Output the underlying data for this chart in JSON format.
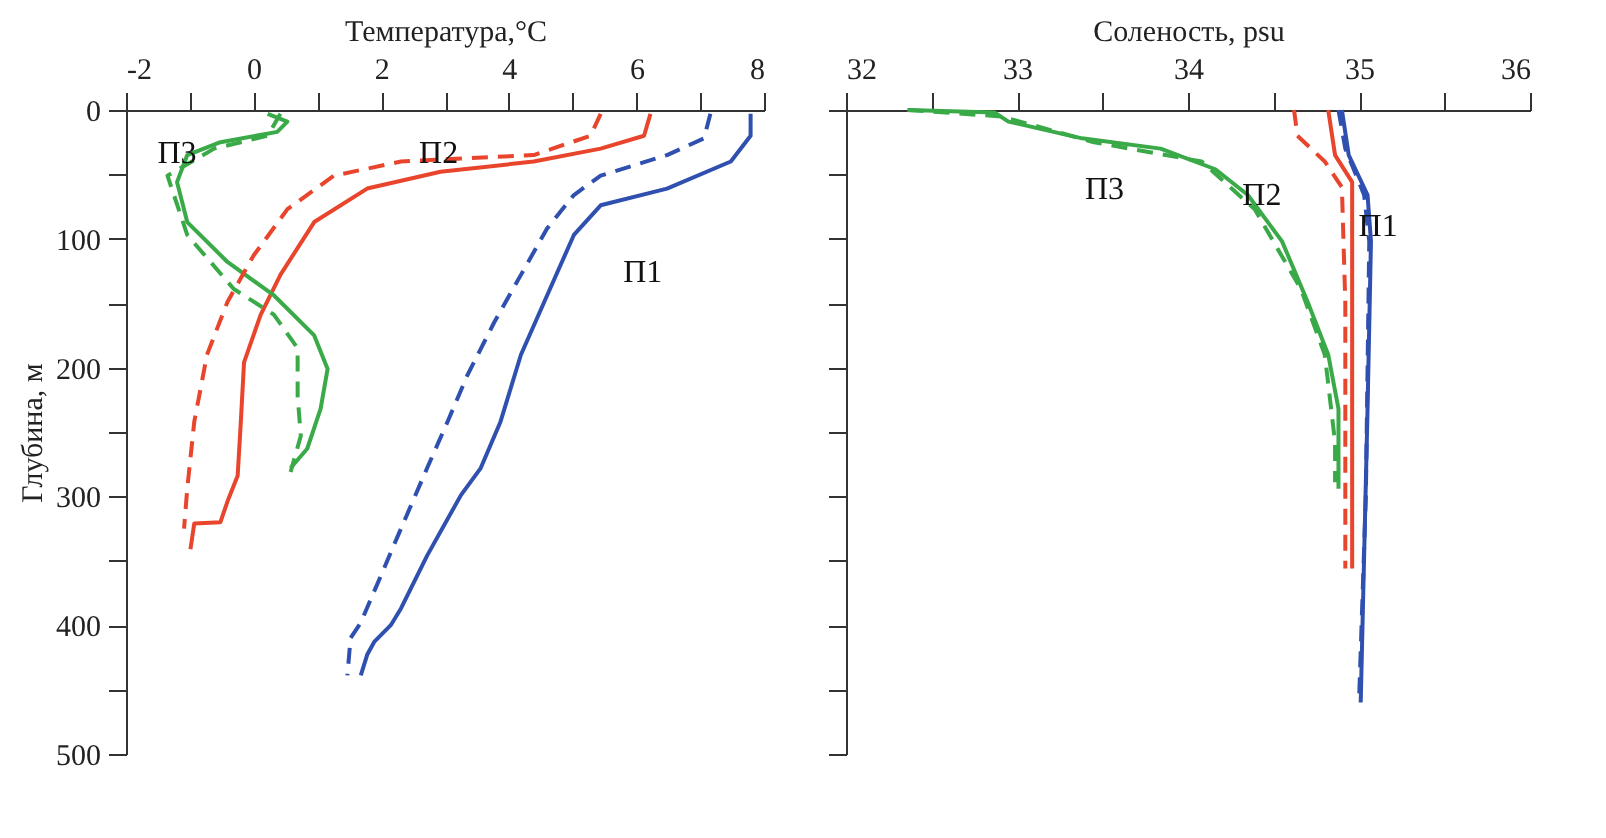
{
  "chart_data": [
    {
      "type": "line",
      "xlabel": "Температура,°C",
      "ylabel": "Глубина, м",
      "xlim": [
        -2,
        8
      ],
      "xticks": [
        -2,
        {
          "value": -1,
          "label": null
        },
        0,
        {
          "value": 1,
          "label": null
        },
        2,
        {
          "value": 3,
          "label": null
        },
        4,
        {
          "value": 5,
          "label": null
        },
        6,
        {
          "value": 7,
          "label": null
        },
        8
      ],
      "ylim": [
        500,
        0
      ],
      "yticks": [
        0,
        {
          "value": 50,
          "label": null
        },
        100,
        {
          "value": 150,
          "label": null
        },
        200,
        {
          "value": 250,
          "label": null
        },
        300,
        {
          "value": 350,
          "label": null
        },
        400,
        {
          "value": 450,
          "label": null
        },
        500
      ],
      "grid": false,
      "series": [
        {
          "color": "#3050b0",
          "line_style": "solid",
          "x": [
            7.79,
            7.79,
            7.48,
            6.48,
            5.44,
            5.02,
            4.6,
            4.19,
            3.87,
            3.56,
            3.25,
            2.72,
            2.31,
            2.15,
            1.89,
            1.78,
            1.68
          ],
          "values": [
            3,
            20,
            40,
            61,
            74,
            97,
            144,
            190,
            242,
            278,
            299,
            346,
            387,
            400,
            413,
            423,
            439
          ]
        },
        {
          "color": "#3050b0",
          "line_style": "dashed",
          "x": [
            7.16,
            7.06,
            6.48,
            5.44,
            5.02,
            4.6,
            4.19,
            3.77,
            3.35,
            3.04,
            2.72,
            2.31,
            2.0,
            1.68,
            1.52,
            1.47
          ],
          "values": [
            3,
            22,
            35,
            51,
            66,
            92,
            128,
            165,
            206,
            242,
            278,
            325,
            361,
            398,
            410,
            439
          ]
        },
        {
          "color": "#e8452c",
          "line_style": "solid",
          "x": [
            6.22,
            6.12,
            5.44,
            4.39,
            2.93,
            1.78,
            0.95,
            0.42,
            0.11,
            -0.15,
            -0.2,
            -0.25,
            -0.41,
            -0.52,
            -0.93,
            -0.99
          ],
          "values": [
            3,
            20,
            30,
            40,
            48,
            61,
            87,
            128,
            159,
            196,
            242,
            284,
            304,
            320,
            321,
            341
          ]
        },
        {
          "color": "#e8452c",
          "line_style": "dashed",
          "x": [
            5.44,
            5.28,
            4.39,
            2.31,
            1.26,
            0.53,
            0.0,
            -0.41,
            -0.73,
            -0.93,
            -1.04,
            -1.09
          ],
          "values": [
            3,
            20,
            35,
            40,
            51,
            77,
            113,
            149,
            190,
            242,
            294,
            325
          ]
        },
        {
          "color": "#3aaa48",
          "line_style": "solid",
          "x": [
            0.22,
            0.53,
            0.37,
            -0.52,
            -1.04,
            -1.2,
            -1.04,
            -0.41,
            0.32,
            0.95,
            1.16,
            1.05,
            0.84,
            0.58
          ],
          "values": [
            3,
            9,
            17,
            25,
            35,
            56,
            87,
            118,
            144,
            175,
            201,
            232,
            263,
            278
          ]
        },
        {
          "color": "#3aaa48",
          "line_style": "dashed",
          "x": [
            0.42,
            0.22,
            -0.62,
            -1.35,
            -1.04,
            -0.31,
            0.32,
            0.69,
            0.69,
            0.74,
            0.58
          ],
          "values": [
            3,
            20,
            30,
            51,
            97,
            139,
            159,
            185,
            222,
            253,
            281
          ]
        }
      ],
      "annotations": [
        "П1",
        "П2",
        "П3"
      ]
    },
    {
      "type": "line",
      "xlabel": "Соленость, psu",
      "xlim": [
        32,
        36
      ],
      "xticks": [
        32,
        {
          "value": 32.5,
          "label": null
        },
        33,
        {
          "value": 33.5,
          "label": null
        },
        34,
        {
          "value": 34.5,
          "label": null
        },
        35,
        {
          "value": 35.5,
          "label": null
        },
        36
      ],
      "ylim": [
        500,
        0
      ],
      "yticks": [
        {
          "value": 0,
          "label": null
        },
        {
          "value": 50,
          "label": null
        },
        {
          "value": 100,
          "label": null
        },
        {
          "value": 150,
          "label": null
        },
        {
          "value": 200,
          "label": null
        },
        {
          "value": 250,
          "label": null
        },
        {
          "value": 300,
          "label": null
        },
        {
          "value": 350,
          "label": null
        },
        {
          "value": 400,
          "label": null
        },
        {
          "value": 450,
          "label": null
        },
        {
          "value": 500,
          "label": null
        }
      ],
      "tick_labels": "x",
      "grid": false,
      "series": [
        {
          "color": "#3050b0",
          "line_style": "solid",
          "x": [
            34.9,
            34.94,
            35.05,
            35.07,
            35.05,
            35.01
          ],
          "values": [
            0,
            35,
            66,
            102,
            232,
            460
          ]
        },
        {
          "color": "#3050b0",
          "line_style": "dashed",
          "x": [
            34.88,
            34.92,
            35.03,
            35.06,
            35.04,
            35.0
          ],
          "values": [
            0,
            30,
            66,
            102,
            300,
            460
          ]
        },
        {
          "color": "#e8452c",
          "line_style": "solid",
          "x": [
            34.82,
            34.86,
            34.96,
            34.96
          ],
          "values": [
            0,
            35,
            56,
            356
          ]
        },
        {
          "color": "#e8452c",
          "line_style": "dashed",
          "x": [
            34.62,
            34.64,
            34.8,
            34.9,
            34.92,
            34.92
          ],
          "values": [
            0,
            20,
            40,
            60,
            150,
            356
          ]
        },
        {
          "color": "#3aaa48",
          "line_style": "solid",
          "x": [
            32.36,
            32.87,
            32.95,
            33.38,
            33.84,
            34.16,
            34.35,
            34.55,
            34.7,
            34.82,
            34.88,
            34.88
          ],
          "values": [
            0,
            2,
            9,
            22,
            30,
            46,
            66,
            102,
            149,
            190,
            232,
            294
          ]
        },
        {
          "color": "#3aaa48",
          "line_style": "dashed",
          "x": [
            32.36,
            32.91,
            33.45,
            34.08,
            34.39,
            34.66,
            34.8,
            34.86,
            34.86
          ],
          "values": [
            0,
            5,
            25,
            40,
            77,
            139,
            190,
            258,
            289
          ]
        }
      ],
      "annotations": [
        "П3",
        "П2",
        "П1"
      ]
    }
  ]
}
